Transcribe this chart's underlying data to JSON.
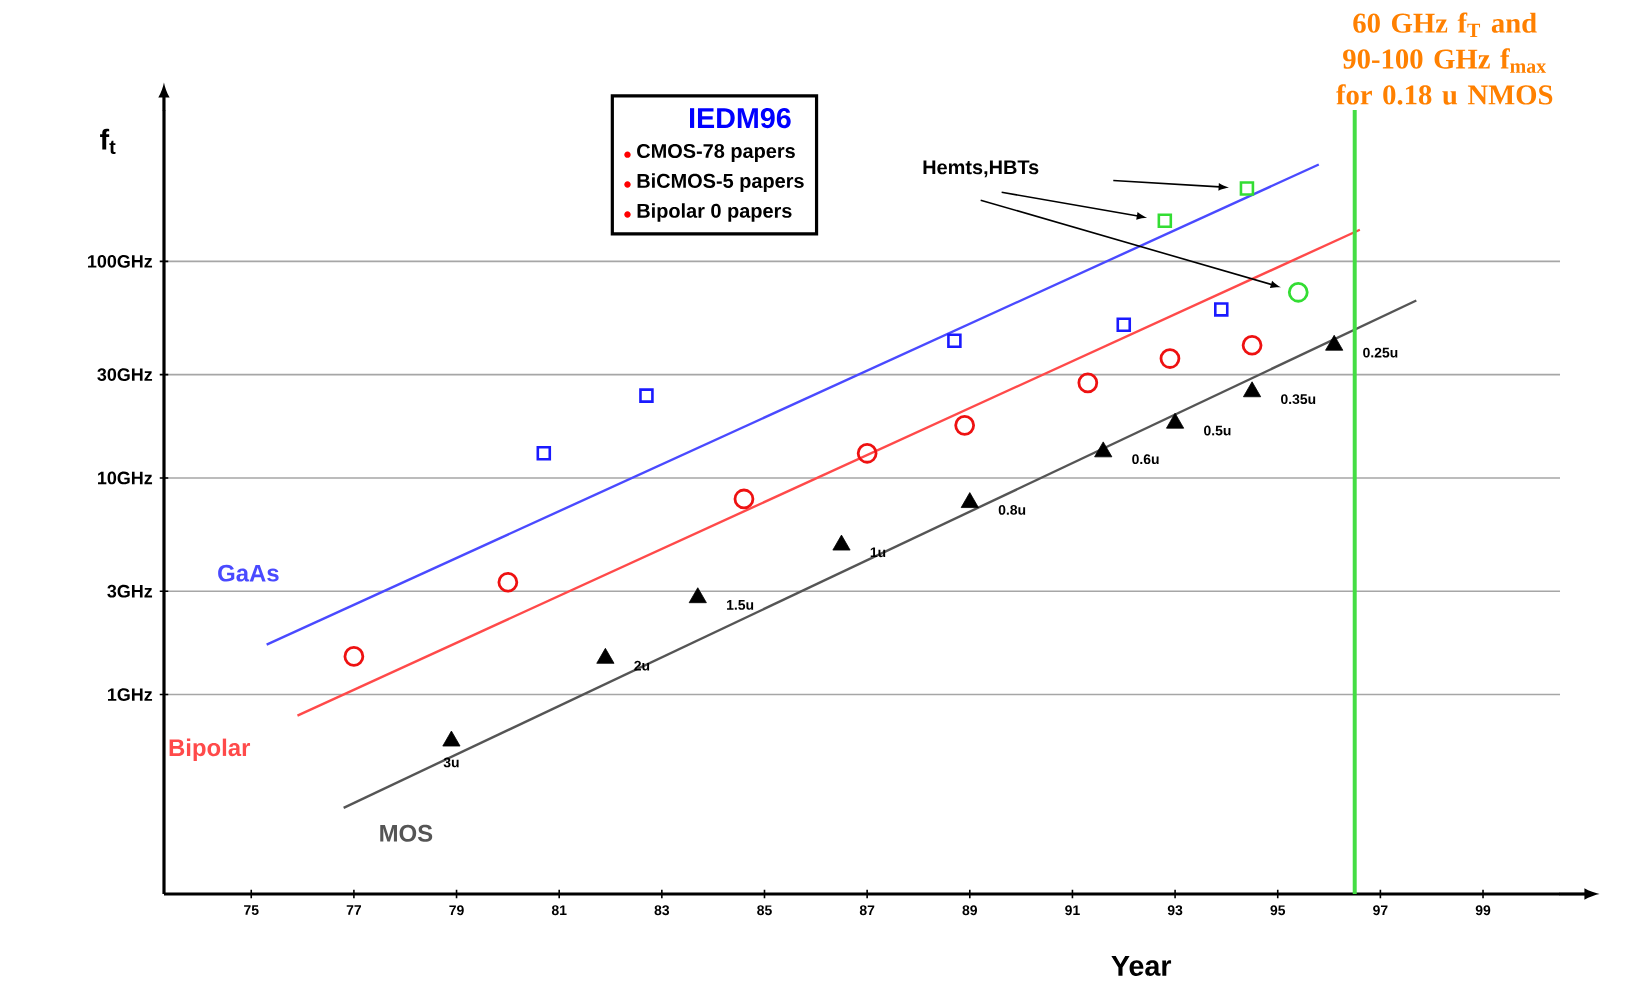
{
  "chart_data": {
    "type": "scatter",
    "ylabel": "f$_{t}$",
    "xlabel": "Year",
    "xlim": [
      73.3,
      100.5
    ],
    "ylim": [
      0.12,
      500
    ],
    "xticks": [
      75,
      77,
      79,
      81,
      83,
      85,
      87,
      89,
      91,
      93,
      95,
      97,
      99
    ],
    "yticks": [
      {
        "value": 1,
        "label": "1GHz"
      },
      {
        "value": 3,
        "label": "3GHz"
      },
      {
        "value": 10,
        "label": "10GHz"
      },
      {
        "value": 30,
        "label": "30GHz"
      },
      {
        "value": 100,
        "label": "100GHz"
      }
    ],
    "log": "y",
    "grid": "y",
    "annotations": [
      "IEDM96",
      "CMOS-78 papers",
      "BiCMOS-5 papers",
      "Bipolar 0 papers",
      "Hemts,HBTs",
      {
        "text": "3u",
        "x": 78.9,
        "y": 0.61
      },
      {
        "text": "2u",
        "x": 81.9,
        "y": 1.47
      },
      {
        "text": "1.5u",
        "x": 83.7,
        "y": 2.8
      },
      {
        "text": "1u",
        "x": 86.5,
        "y": 4.9
      },
      {
        "text": "0.8u",
        "x": 89.0,
        "y": 7.7
      },
      {
        "text": "0.6u",
        "x": 91.6,
        "y": 13.2
      },
      {
        "text": "0.5u",
        "x": 93.0,
        "y": 17.9
      },
      {
        "text": "0.35u",
        "x": 94.5,
        "y": 25
      },
      {
        "text": "0.25u",
        "x": 96.1,
        "y": 41
      }
    ],
    "ref_lines": [
      {
        "axis": "x",
        "value": 96.5,
        "color": "#44dd44",
        "label": "60 GHz f$_{T}$ and 90-100 GHz f$_{max}$ for 0.18 u NMOS"
      }
    ],
    "series": [
      {
        "name": "GaAs",
        "type": "line",
        "marker": "none",
        "color": "#4a4aff",
        "x": [
          75.3,
          95.8
        ],
        "values": [
          1.7,
          280
        ]
      },
      {
        "name": "Bipolar",
        "type": "line",
        "marker": "none",
        "color": "#ff4a4a",
        "x": [
          75.9,
          96.6
        ],
        "values": [
          0.8,
          140
        ]
      },
      {
        "name": "MOS",
        "type": "line",
        "marker": "none",
        "color": "#555555",
        "x": [
          76.8,
          97.7
        ],
        "values": [
          0.3,
          66
        ]
      },
      {
        "marker": "square",
        "color": "#1a1aff",
        "x": [
          80.7,
          82.7,
          88.7,
          92.0,
          93.9
        ],
        "values": [
          13,
          24,
          43,
          51,
          60
        ]
      },
      {
        "marker": "square",
        "color": "#33dd33",
        "x": [
          92.8,
          94.4
        ],
        "values": [
          154,
          217
        ]
      },
      {
        "marker": "circle",
        "color": "#ee1111",
        "x": [
          77.0,
          80.0,
          84.6,
          87.0,
          88.9,
          91.3,
          92.9,
          94.5
        ],
        "values": [
          1.5,
          3.3,
          8,
          13,
          17.5,
          27.5,
          35.6,
          41
        ]
      },
      {
        "marker": "circle",
        "color": "#33dd33",
        "x": [
          95.4
        ],
        "values": [
          72
        ]
      },
      {
        "marker": "triangle",
        "color": "#000000",
        "x": [
          78.9,
          81.9,
          83.7,
          86.5,
          89.0,
          91.6,
          93.0,
          94.5,
          96.1
        ],
        "values": [
          0.61,
          1.47,
          2.8,
          4.9,
          7.7,
          13.2,
          17.9,
          25,
          41
        ]
      }
    ]
  }
}
